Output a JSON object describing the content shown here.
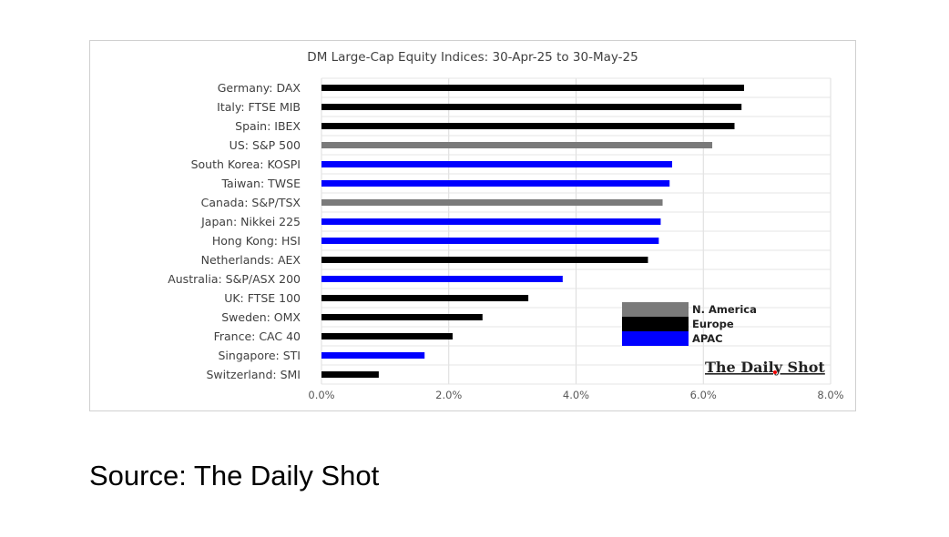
{
  "chart_data": {
    "type": "bar",
    "orientation": "horizontal",
    "title": "DM Large-Cap Equity Indices: 30-Apr-25 to 30-May-25",
    "xlabel": "",
    "ylabel": "",
    "xlim": [
      0,
      8
    ],
    "x_ticks": [
      "0.0%",
      "2.0%",
      "4.0%",
      "6.0%",
      "8.0%"
    ],
    "grid": true,
    "legend_position": "bottom-right",
    "colors": {
      "N. America": "#7a7a7a",
      "Europe": "#000000",
      "APAC": "#0000ff"
    },
    "legend": [
      "N. America",
      "Europe",
      "APAC"
    ],
    "categories": [
      "Germany: DAX",
      "Italy: FTSE MIB",
      "Spain: IBEX",
      "US: S&P 500",
      "South Korea: KOSPI",
      "Taiwan: TWSE",
      "Canada: S&P/TSX",
      "Japan: Nikkei 225",
      "Hong Kong: HSI",
      "Netherlands: AEX",
      "Australia: S&P/ASX 200",
      "UK: FTSE 100",
      "Sweden: OMX",
      "France: CAC 40",
      "Singapore: STI",
      "Switzerland: SMI"
    ],
    "values": [
      6.64,
      6.6,
      6.49,
      6.14,
      5.51,
      5.47,
      5.36,
      5.33,
      5.3,
      5.13,
      3.79,
      3.25,
      2.53,
      2.06,
      1.62,
      0.9
    ],
    "regions": [
      "Europe",
      "Europe",
      "Europe",
      "N. America",
      "APAC",
      "APAC",
      "N. America",
      "APAC",
      "APAC",
      "Europe",
      "APAC",
      "Europe",
      "Europe",
      "Europe",
      "APAC",
      "Europe"
    ],
    "unit": "%"
  },
  "watermark": "The Daily Shot",
  "source": "Source: The Daily Shot"
}
